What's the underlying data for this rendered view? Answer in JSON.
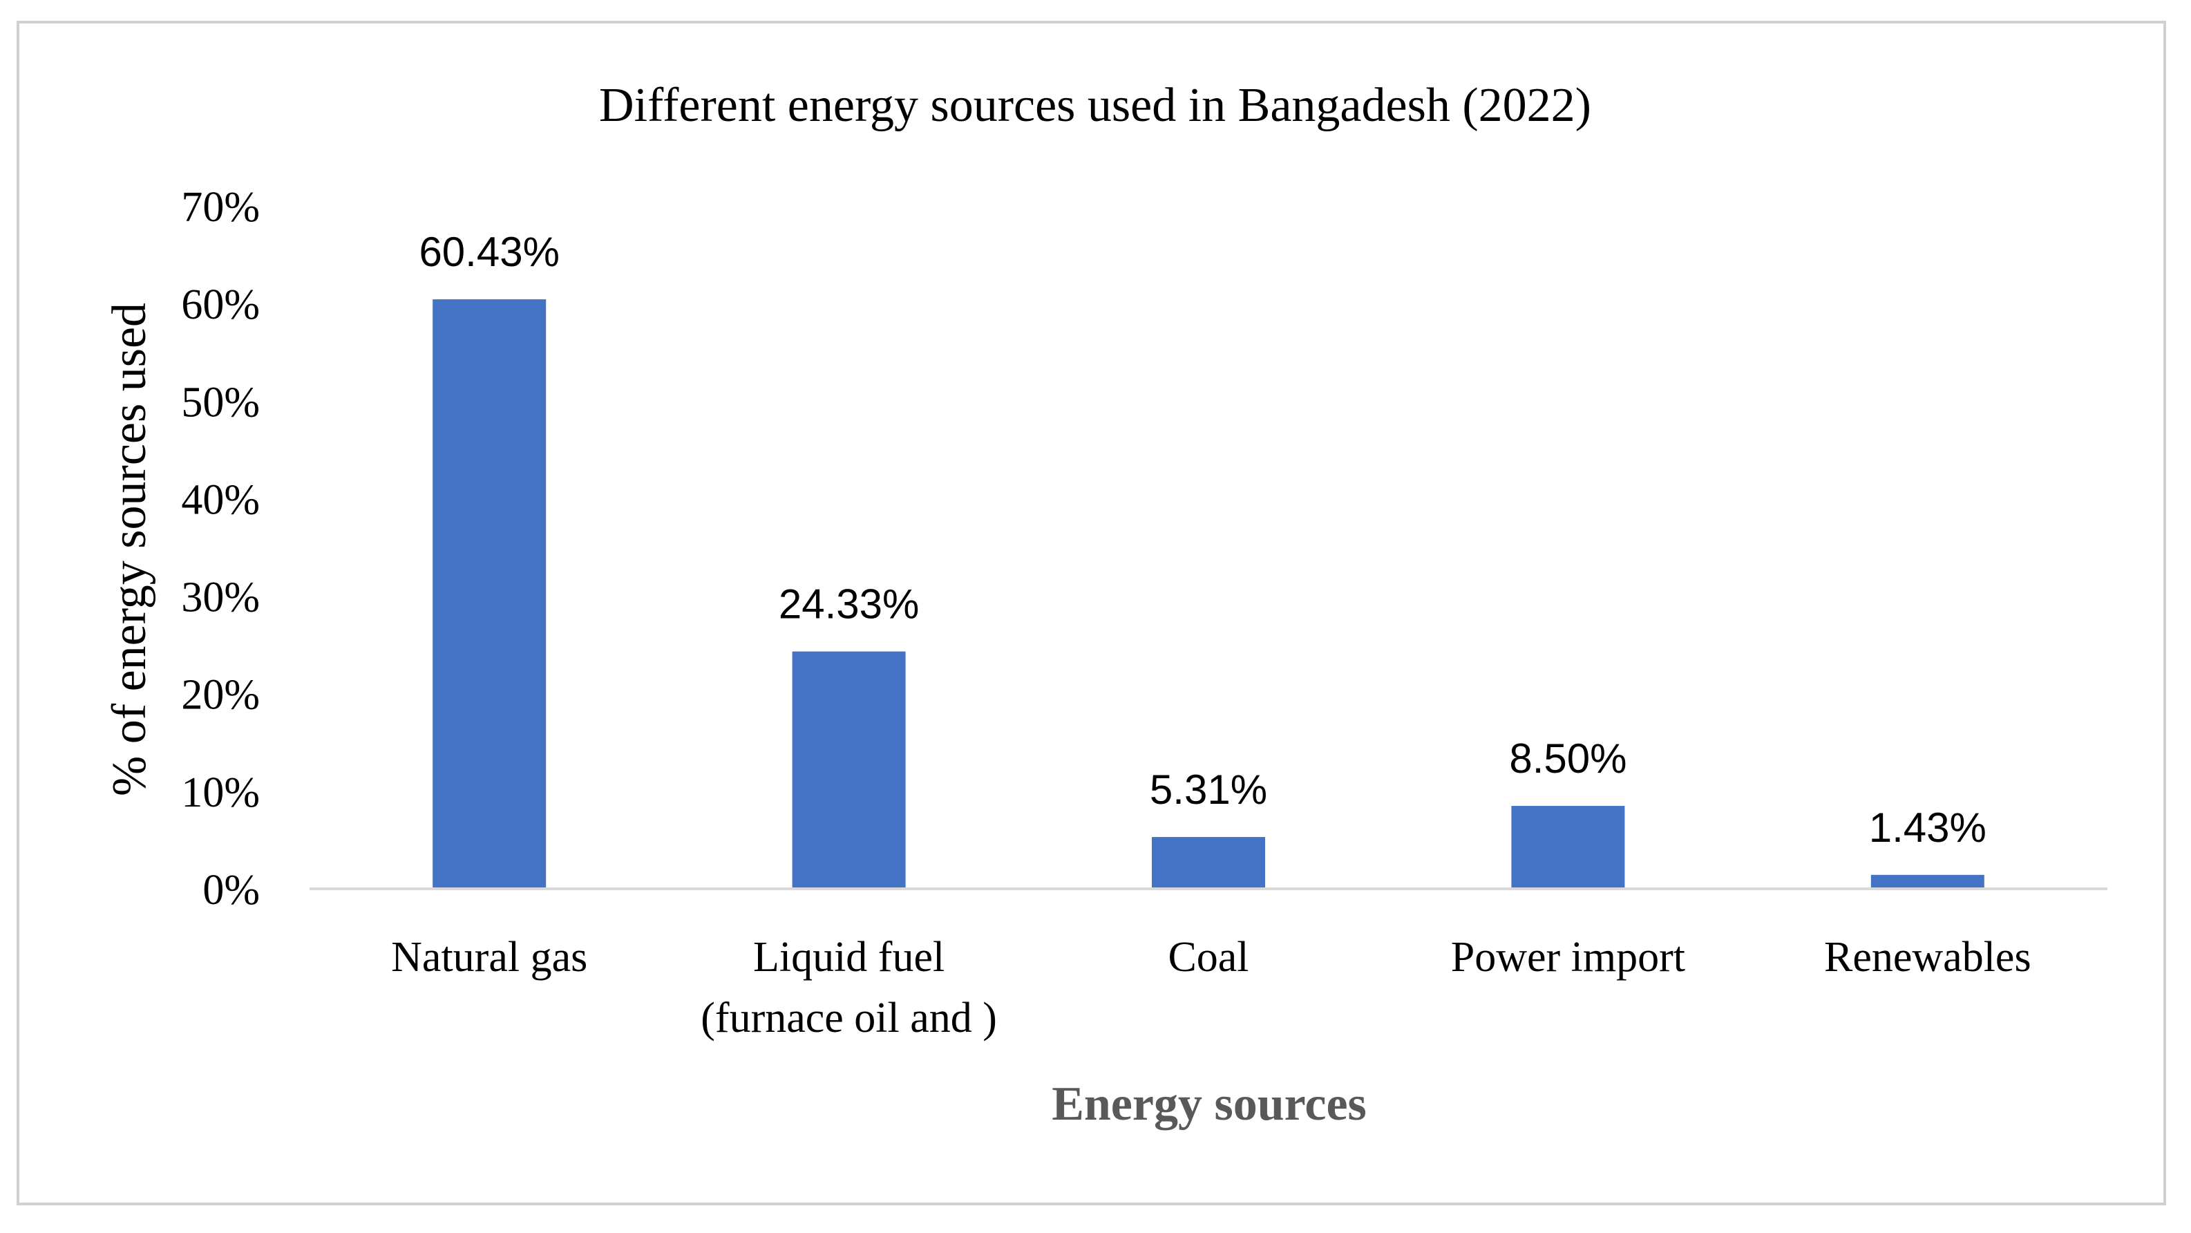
{
  "chart_data": {
    "type": "bar",
    "title": "Different energy sources used in Bangadesh (2022)",
    "xlabel": "Energy sources",
    "ylabel": "% of energy sources used",
    "categories": [
      [
        "Natural gas"
      ],
      [
        "Liquid fuel",
        "(furnace oil and )"
      ],
      [
        "Coal"
      ],
      [
        "Power import"
      ],
      [
        "Renewables"
      ]
    ],
    "values": [
      60.43,
      24.33,
      5.31,
      8.5,
      1.43
    ],
    "data_labels": [
      "60.43%",
      "24.33%",
      "5.31%",
      "8.50%",
      "1.43%"
    ],
    "ylim": [
      0,
      70
    ],
    "yticks": [
      0,
      10,
      20,
      30,
      40,
      50,
      60,
      70
    ],
    "ytick_labels": [
      "0%",
      "10%",
      "20%",
      "30%",
      "40%",
      "50%",
      "60%",
      "70%"
    ],
    "grid": false,
    "legend": "none",
    "bar_color": "#4472C4",
    "axis_color": "#D9D9D9"
  }
}
